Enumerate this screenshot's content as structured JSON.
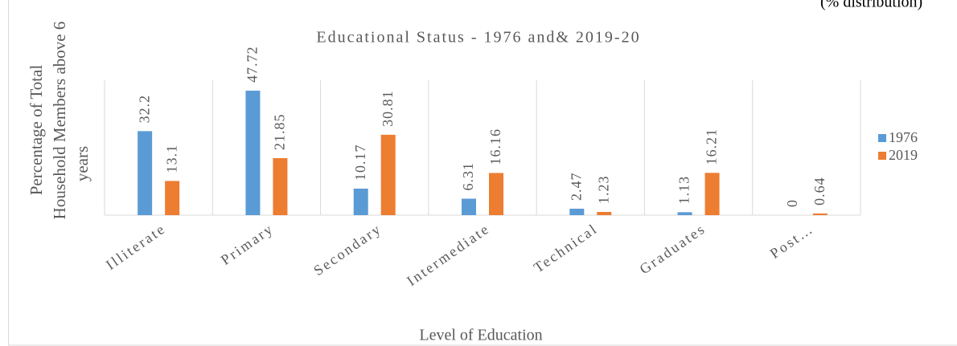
{
  "chart_data": {
    "type": "bar",
    "title": "Educational Status - 1976 and& 2019-20",
    "subtitle": "(% distribution)",
    "x_label": "Level of Education",
    "y_label": [
      "Percentage of  Total",
      "Household Members above 6",
      "years"
    ],
    "categories": [
      "Illiterate",
      "Primary",
      "Secondary",
      "Intermediate",
      "Technical",
      "Graduates",
      "Post…"
    ],
    "series": [
      {
        "name": "1976",
        "color": "#5b9bd5",
        "values": [
          32.2,
          47.72,
          10.17,
          6.31,
          2.47,
          1.13,
          0
        ]
      },
      {
        "name": "2019",
        "color": "#ed7d31",
        "values": [
          13.1,
          21.85,
          30.81,
          16.16,
          1.23,
          16.21,
          0.64
        ]
      }
    ],
    "ylim": [
      0,
      60
    ],
    "legend": "right"
  }
}
